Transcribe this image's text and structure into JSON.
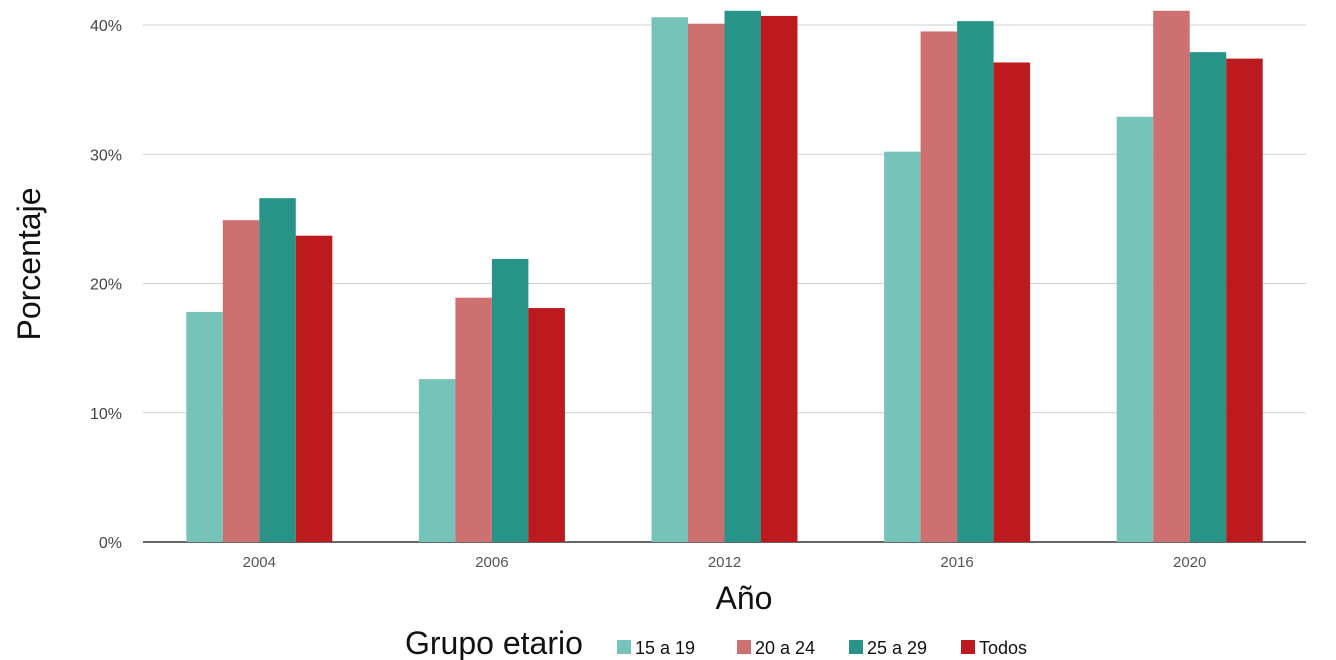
{
  "chart_data": {
    "type": "bar",
    "categories": [
      "2004",
      "2006",
      "2012",
      "2016",
      "2020"
    ],
    "series": [
      {
        "name": "15 a 19",
        "color": "#76c4b9",
        "values": [
          17.8,
          12.6,
          40.6,
          30.2,
          32.9
        ]
      },
      {
        "name": "20 a 24",
        "color": "#cd7070",
        "values": [
          24.9,
          18.9,
          40.1,
          39.5,
          41.1
        ]
      },
      {
        "name": "25 a 29",
        "color": "#279487",
        "values": [
          26.6,
          21.9,
          41.1,
          40.3,
          37.9
        ]
      },
      {
        "name": "Todos",
        "color": "#bc1a1f",
        "values": [
          23.7,
          18.1,
          40.7,
          37.1,
          37.4
        ]
      }
    ],
    "xlabel": "Año",
    "ylabel": "Porcentaje",
    "ylim": [
      0,
      40
    ],
    "yticks": [
      0,
      10,
      20,
      30,
      40
    ],
    "yticklabels": [
      "0%",
      "10%",
      "20%",
      "30%",
      "40%"
    ],
    "grid": true,
    "legend": {
      "title": "Grupo etario",
      "position": "bottom"
    }
  }
}
